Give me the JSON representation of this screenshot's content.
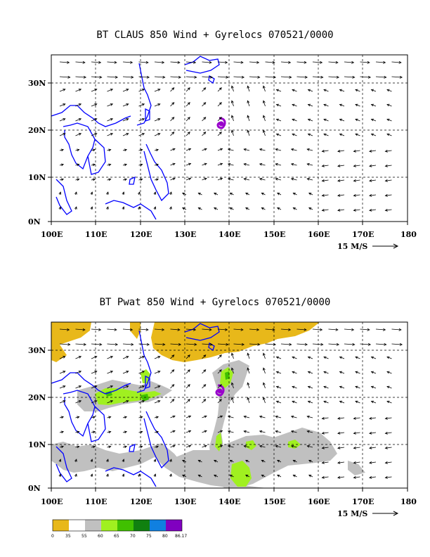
{
  "panel1": {
    "title": "BT CLAUS 850 Wind + Gyrelocs 070521/0000"
  },
  "panel2": {
    "title": "BT Pwat 850 Wind + Gyrelocs 070521/0000"
  },
  "axes": {
    "x_ticks": [
      "100E",
      "110E",
      "120E",
      "130E",
      "140E",
      "150E",
      "160E",
      "170E",
      "180"
    ],
    "y_ticks": [
      "0N",
      "10N",
      "20N",
      "30N"
    ]
  },
  "reference_vector": {
    "label": "15 M/S"
  },
  "colorbar": {
    "colors": [
      "#e8b81a",
      "#ffffff",
      "#c0c0c0",
      "#a0f020",
      "#40c000",
      "#108010",
      "#1080e0",
      "#8000c0"
    ],
    "labels": [
      "0",
      "35",
      "55",
      "60",
      "65",
      "70",
      "75",
      "80",
      "86.17"
    ]
  },
  "colors": {
    "coast": "#0000ff",
    "gyre": "#9900cc"
  }
}
